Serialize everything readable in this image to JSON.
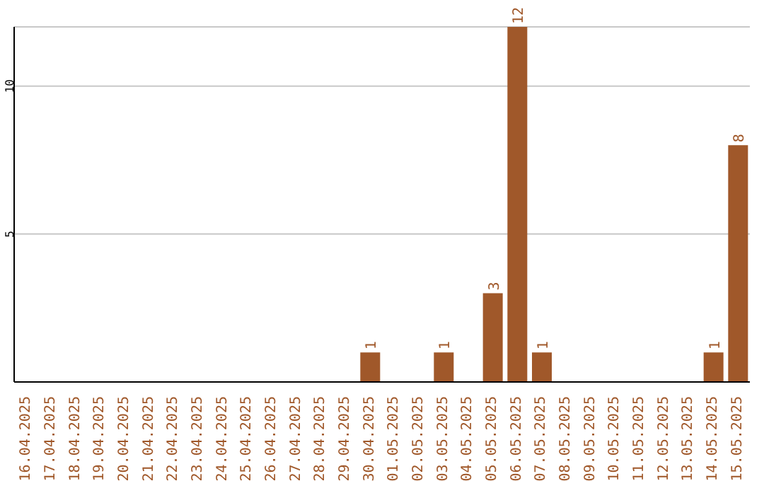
{
  "chart_data": {
    "type": "bar",
    "categories": [
      "16.04.2025",
      "17.04.2025",
      "18.04.2025",
      "19.04.2025",
      "20.04.2025",
      "21.04.2025",
      "22.04.2025",
      "23.04.2025",
      "24.04.2025",
      "25.04.2025",
      "26.04.2025",
      "27.04.2025",
      "28.04.2025",
      "29.04.2025",
      "30.04.2025",
      "01.05.2025",
      "02.05.2025",
      "03.05.2025",
      "04.05.2025",
      "05.05.2025",
      "06.05.2025",
      "07.05.2025",
      "08.05.2025",
      "09.05.2025",
      "10.05.2025",
      "11.05.2025",
      "12.05.2025",
      "13.05.2025",
      "14.05.2025",
      "15.05.2025"
    ],
    "values": [
      0,
      0,
      0,
      0,
      0,
      0,
      0,
      0,
      0,
      0,
      0,
      0,
      0,
      0,
      1,
      0,
      0,
      1,
      0,
      3,
      12,
      1,
      0,
      0,
      0,
      0,
      0,
      0,
      1,
      8
    ],
    "value_labels": [
      null,
      null,
      null,
      null,
      null,
      null,
      null,
      null,
      null,
      null,
      null,
      null,
      null,
      null,
      "1",
      null,
      null,
      "1",
      null,
      "3",
      "12",
      "1",
      null,
      null,
      null,
      null,
      null,
      null,
      "1",
      "8"
    ],
    "color": "#a0582a",
    "ylim": [
      0,
      12
    ],
    "yticks": [
      5,
      10
    ],
    "grid": "y"
  }
}
